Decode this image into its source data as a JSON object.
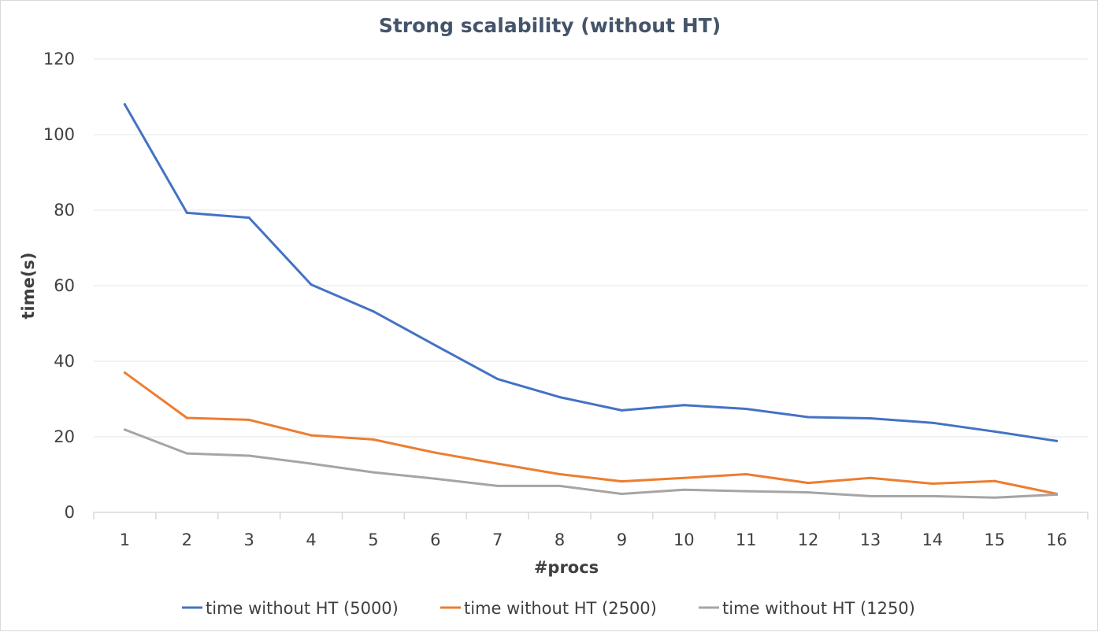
{
  "chart_data": {
    "type": "line",
    "title": "Strong scalability (without HT)",
    "xlabel": "#procs",
    "ylabel": "time(s)",
    "ylim": [
      0,
      120
    ],
    "yticks": [
      "0",
      "20",
      "40",
      "60",
      "80",
      "100",
      "120"
    ],
    "categories": [
      "1",
      "2",
      "3",
      "4",
      "5",
      "6",
      "7",
      "8",
      "9",
      "10",
      "11",
      "12",
      "13",
      "14",
      "15",
      "16"
    ],
    "grid": "horizontal",
    "legend_position": "bottom",
    "series": [
      {
        "name": "time without HT (5000)",
        "color": "#4472c4",
        "values": [
          108,
          79.3,
          78,
          60.3,
          53.2,
          44.2,
          35.3,
          30.5,
          27,
          28.4,
          27.4,
          25.2,
          24.9,
          23.7,
          21.4,
          18.9
        ]
      },
      {
        "name": "time without HT (2500)",
        "color": "#ed7d31",
        "values": [
          37,
          25,
          24.5,
          20.4,
          19.3,
          15.8,
          12.9,
          10.1,
          8.2,
          9.1,
          10.1,
          7.8,
          9.1,
          7.6,
          8.3,
          4.9
        ]
      },
      {
        "name": "time without HT (1250)",
        "color": "#a5a5a5",
        "values": [
          21.9,
          15.6,
          15,
          12.9,
          10.6,
          8.9,
          7,
          7,
          4.9,
          6,
          5.6,
          5.3,
          4.3,
          4.3,
          3.9,
          4.7
        ]
      }
    ]
  }
}
